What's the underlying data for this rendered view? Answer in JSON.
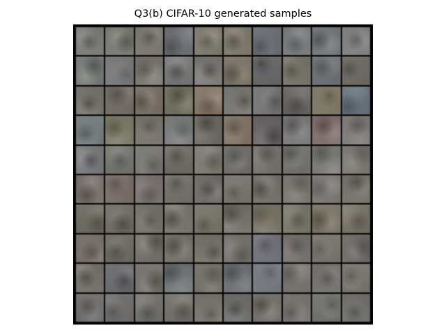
{
  "title": "Q3(b) CIFAR-10 generated samples",
  "grid": {
    "rows": 10,
    "cols": 10,
    "tile_colors": [
      [
        "#7c7b78",
        "#7b7a74",
        "#7a786f",
        "#6c6e72",
        "#7e7a70",
        "#7f7a6e",
        "#6d7076",
        "#787a7c",
        "#75797c",
        "#808082"
      ],
      [
        "#777a77",
        "#7a7b7c",
        "#797670",
        "#777878",
        "#7a7874",
        "#7b7669",
        "#69686a",
        "#77746a",
        "#6f7275",
        "#6f6c66"
      ],
      [
        "#76726c",
        "#716b64",
        "#797167",
        "#6f6f5e",
        "#85776a",
        "#7a7873",
        "#767676",
        "#6a6663",
        "#7f7868",
        "#6b747c"
      ],
      [
        "#767d80",
        "#7b7b69",
        "#78766f",
        "#7a7c7b",
        "#6f6c67",
        "#827568",
        "#6a6668",
        "#7c7b7a",
        "#7f6f6d",
        "#7d7b79"
      ],
      [
        "#797a7c",
        "#767570",
        "#7b7a74",
        "#716d66",
        "#7e7a72",
        "#72706b",
        "#76736e",
        "#75746f",
        "#7b7a76",
        "#7a7872"
      ],
      [
        "#78716c",
        "#7a706a",
        "#79726e",
        "#75716c",
        "#6e6b68",
        "#7a7670",
        "#72726a",
        "#7a7670",
        "#7d7975",
        "#77736b"
      ],
      [
        "#706e64",
        "#726f67",
        "#76726a",
        "#78756d",
        "#7a766c",
        "#74726a",
        "#787468",
        "#7a766b",
        "#7b7669",
        "#787368"
      ],
      [
        "#77706a",
        "#6f6d66",
        "#75726c",
        "#74706a",
        "#77736b",
        "#76746e",
        "#72727a",
        "#74706c",
        "#7a7670",
        "#706c68"
      ],
      [
        "#76716b",
        "#6c6d6f",
        "#76736e",
        "#737678",
        "#75726c",
        "#6e7276",
        "#777b80",
        "#7a7772",
        "#757370",
        "#7b7670"
      ],
      [
        "#72706e",
        "#73716f",
        "#74726e",
        "#76736e",
        "#797670",
        "#6f6e6c",
        "#75726d",
        "#7a7772",
        "#757470",
        "#72716d"
      ]
    ]
  }
}
